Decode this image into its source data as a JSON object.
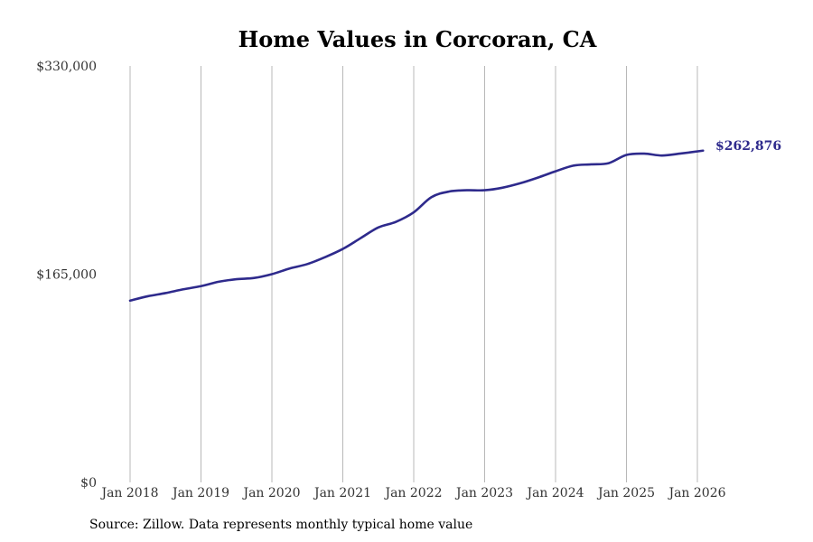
{
  "chart_data": {
    "type": "line",
    "title": "Home Values in Corcoran, CA",
    "xlabel": "",
    "ylabel": "",
    "ylim": [
      0,
      330000
    ],
    "y_ticks": [
      {
        "value": 0,
        "label": "$0"
      },
      {
        "value": 165000,
        "label": "$165,000"
      },
      {
        "value": 330000,
        "label": "$330,000"
      }
    ],
    "x_ticks": [
      {
        "value": 2018.0,
        "label": "Jan 2018"
      },
      {
        "value": 2019.0,
        "label": "Jan 2019"
      },
      {
        "value": 2020.0,
        "label": "Jan 2020"
      },
      {
        "value": 2021.0,
        "label": "Jan 2021"
      },
      {
        "value": 2022.0,
        "label": "Jan 2022"
      },
      {
        "value": 2023.0,
        "label": "Jan 2023"
      },
      {
        "value": 2024.0,
        "label": "Jan 2024"
      },
      {
        "value": 2025.0,
        "label": "Jan 2025"
      },
      {
        "value": 2026.0,
        "label": "Jan 2026"
      }
    ],
    "xlim": [
      2017.85,
      2026.6
    ],
    "grid": "vertical",
    "line_color": "#2e2a8c",
    "end_label": "$262,876",
    "series": [
      {
        "name": "Typical home value",
        "x": [
          2018.0,
          2018.25,
          2018.5,
          2018.75,
          2019.0,
          2019.25,
          2019.5,
          2019.75,
          2020.0,
          2020.25,
          2020.5,
          2020.75,
          2021.0,
          2021.25,
          2021.5,
          2021.75,
          2022.0,
          2022.25,
          2022.5,
          2022.75,
          2023.0,
          2023.25,
          2023.5,
          2023.75,
          2024.0,
          2024.25,
          2024.5,
          2024.75,
          2025.0,
          2025.25,
          2025.5,
          2025.75,
          2026.08
        ],
        "y": [
          144000,
          147500,
          150000,
          153000,
          155500,
          159000,
          161000,
          162000,
          165000,
          169500,
          173000,
          178500,
          185000,
          193500,
          202000,
          206500,
          214000,
          226000,
          230500,
          231500,
          231500,
          233500,
          237000,
          241500,
          246500,
          251000,
          252000,
          253000,
          259500,
          260500,
          259000,
          260500,
          262876
        ]
      }
    ]
  },
  "source_text": "Source: Zillow. Data represents monthly typical home value"
}
